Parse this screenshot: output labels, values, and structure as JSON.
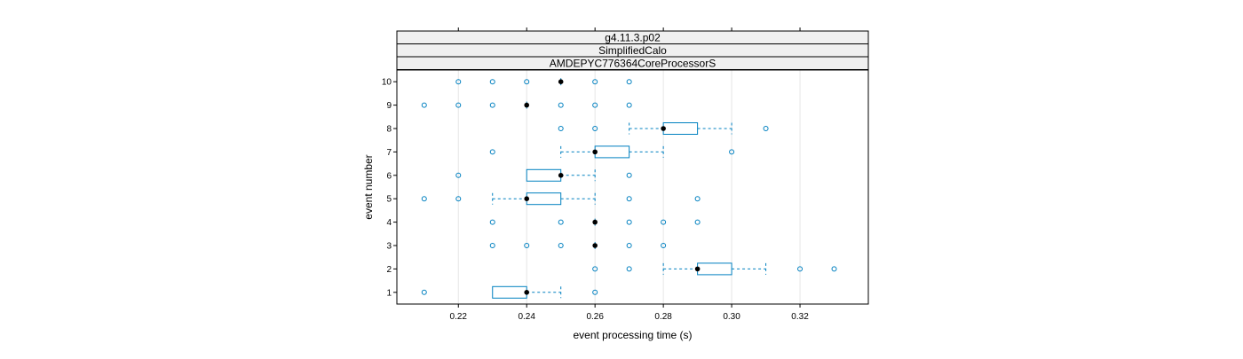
{
  "chart_data": {
    "type": "boxplot",
    "orientation": "horizontal",
    "strips": [
      "g4.11.3.p02",
      "SimplifiedCalo",
      "AMDEPYC776364CoreProcessorS"
    ],
    "xlabel": "event processing time (s)",
    "ylabel": "event number",
    "xlim": [
      0.202,
      0.34
    ],
    "xticks": [
      0.22,
      0.24,
      0.26,
      0.28,
      0.3,
      0.32
    ],
    "xtick_labels": [
      "0.22",
      "0.24",
      "0.26",
      "0.28",
      "0.30",
      "0.32"
    ],
    "categories": [
      "1",
      "2",
      "3",
      "4",
      "5",
      "6",
      "7",
      "8",
      "9",
      "10"
    ],
    "grid": "vertical",
    "colors": {
      "box": "#0080c0",
      "median": "#000000",
      "strip_bg": "#f0f0f0",
      "grid": "#e6e6e6"
    },
    "boxes": [
      {
        "event": "1",
        "whisker_low": 0.23,
        "q1": 0.23,
        "median": 0.24,
        "q3": 0.24,
        "whisker_high": 0.25,
        "outliers": [
          0.21,
          0.26
        ]
      },
      {
        "event": "2",
        "whisker_low": 0.28,
        "q1": 0.29,
        "median": 0.29,
        "q3": 0.3,
        "whisker_high": 0.31,
        "outliers": [
          0.26,
          0.27,
          0.32,
          0.33
        ]
      },
      {
        "event": "3",
        "whisker_low": 0.26,
        "q1": 0.26,
        "median": 0.26,
        "q3": 0.26,
        "whisker_high": 0.26,
        "outliers": [
          0.23,
          0.24,
          0.25,
          0.27,
          0.28
        ]
      },
      {
        "event": "4",
        "whisker_low": 0.26,
        "q1": 0.26,
        "median": 0.26,
        "q3": 0.26,
        "whisker_high": 0.26,
        "outliers": [
          0.23,
          0.25,
          0.27,
          0.28,
          0.29
        ]
      },
      {
        "event": "5",
        "whisker_low": 0.23,
        "q1": 0.24,
        "median": 0.24,
        "q3": 0.25,
        "whisker_high": 0.26,
        "outliers": [
          0.21,
          0.22,
          0.27,
          0.29
        ]
      },
      {
        "event": "6",
        "whisker_low": 0.24,
        "q1": 0.24,
        "median": 0.25,
        "q3": 0.25,
        "whisker_high": 0.26,
        "outliers": [
          0.22,
          0.27
        ]
      },
      {
        "event": "7",
        "whisker_low": 0.25,
        "q1": 0.26,
        "median": 0.26,
        "q3": 0.27,
        "whisker_high": 0.28,
        "outliers": [
          0.23,
          0.3
        ]
      },
      {
        "event": "8",
        "whisker_low": 0.27,
        "q1": 0.28,
        "median": 0.28,
        "q3": 0.29,
        "whisker_high": 0.3,
        "outliers": [
          0.25,
          0.26,
          0.31
        ]
      },
      {
        "event": "9",
        "whisker_low": 0.24,
        "q1": 0.24,
        "median": 0.24,
        "q3": 0.24,
        "whisker_high": 0.24,
        "outliers": [
          0.21,
          0.22,
          0.23,
          0.25,
          0.26,
          0.27
        ]
      },
      {
        "event": "10",
        "whisker_low": 0.25,
        "q1": 0.25,
        "median": 0.25,
        "q3": 0.25,
        "whisker_high": 0.25,
        "outliers": [
          0.22,
          0.23,
          0.24,
          0.26,
          0.27
        ]
      }
    ]
  }
}
